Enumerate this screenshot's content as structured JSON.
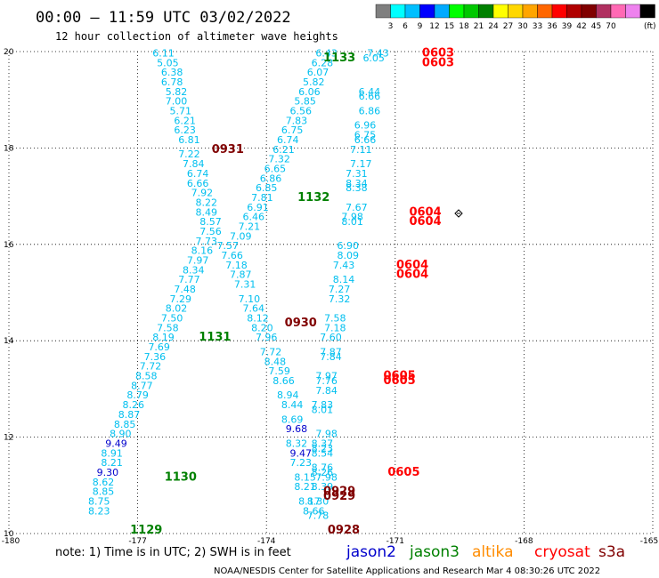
{
  "header": {
    "title": "00:00 – 11:59 UTC 03/02/2022",
    "subtitle": "12 hour collection of altimeter wave heights"
  },
  "colorbar": {
    "swatches": [
      "#7f7f7f",
      "#00ffff",
      "#00bfff",
      "#0000ff",
      "#00aaff",
      "#00ff00",
      "#00c800",
      "#008000",
      "#ffff00",
      "#ffd700",
      "#ffa500",
      "#ff6600",
      "#ff0000",
      "#b00000",
      "#800000",
      "#b03060",
      "#ff69b4",
      "#ee82ee",
      "#000000"
    ],
    "labels": [
      "3",
      "6",
      "9",
      "12",
      "15",
      "18",
      "21",
      "24",
      "27",
      "30",
      "33",
      "36",
      "39",
      "42",
      "45",
      "70"
    ],
    "unit": "(ft)"
  },
  "footer": {
    "note": "note: 1) Time is in UTC; 2) SWH is in feet",
    "credit": "NOAA/NESDIS Center for Satellite Applications and Research   Mar  4 08:30:26 UTC 2022",
    "legend": [
      {
        "name": "jason2",
        "color": "#0000cc"
      },
      {
        "name": "jason3",
        "color": "#008000"
      },
      {
        "name": "altika",
        "color": "#ff8c00"
      },
      {
        "name": "cryosat",
        "color": "#ff0000"
      },
      {
        "name": "s3a",
        "color": "#800000"
      }
    ]
  },
  "chart_data": {
    "type": "scatter",
    "title": "12 hour collection of altimeter wave heights",
    "xlabel": "",
    "ylabel": "",
    "xlim": [
      -180,
      -165
    ],
    "ylim": [
      10,
      20
    ],
    "x_ticks": [
      "-180",
      "-177",
      "-174",
      "-171",
      "-168",
      "-165"
    ],
    "y_ticks": [
      "10",
      "12",
      "14",
      "16",
      "18",
      "20"
    ],
    "grid": true,
    "swh_colors": {
      "low": "#00bfef",
      "mid": "#0000cc"
    },
    "swh_points": [
      {
        "lon": -176.4,
        "lat": 19.9,
        "swh": "6.11"
      },
      {
        "lon": -176.3,
        "lat": 19.7,
        "swh": "5.05"
      },
      {
        "lon": -176.2,
        "lat": 19.5,
        "swh": "6.38"
      },
      {
        "lon": -176.2,
        "lat": 19.3,
        "swh": "6.78"
      },
      {
        "lon": -176.1,
        "lat": 19.1,
        "swh": "5.82"
      },
      {
        "lon": -176.1,
        "lat": 18.9,
        "swh": "7.00"
      },
      {
        "lon": -176.0,
        "lat": 18.7,
        "swh": "5.71"
      },
      {
        "lon": -175.9,
        "lat": 18.5,
        "swh": "6.21"
      },
      {
        "lon": -175.9,
        "lat": 18.3,
        "swh": "6.23"
      },
      {
        "lon": -175.8,
        "lat": 18.1,
        "swh": "6.81"
      },
      {
        "lon": -175.8,
        "lat": 17.8,
        "swh": "7.22"
      },
      {
        "lon": -175.7,
        "lat": 17.6,
        "swh": "7.84"
      },
      {
        "lon": -175.6,
        "lat": 17.4,
        "swh": "6.74"
      },
      {
        "lon": -175.6,
        "lat": 17.2,
        "swh": "6.66"
      },
      {
        "lon": -175.5,
        "lat": 17.0,
        "swh": "7.92"
      },
      {
        "lon": -175.4,
        "lat": 16.8,
        "swh": "8.22"
      },
      {
        "lon": -175.4,
        "lat": 16.6,
        "swh": "8.49"
      },
      {
        "lon": -175.3,
        "lat": 16.4,
        "swh": "8.57"
      },
      {
        "lon": -175.3,
        "lat": 16.2,
        "swh": "7.56"
      },
      {
        "lon": -175.4,
        "lat": 16.0,
        "swh": "7.73"
      },
      {
        "lon": -175.5,
        "lat": 15.8,
        "swh": "8.16"
      },
      {
        "lon": -175.6,
        "lat": 15.6,
        "swh": "7.97"
      },
      {
        "lon": -175.7,
        "lat": 15.4,
        "swh": "8.34"
      },
      {
        "lon": -175.8,
        "lat": 15.2,
        "swh": "7.77"
      },
      {
        "lon": -175.9,
        "lat": 15.0,
        "swh": "7.48"
      },
      {
        "lon": -176.0,
        "lat": 14.8,
        "swh": "7.29"
      },
      {
        "lon": -176.1,
        "lat": 14.6,
        "swh": "8.02"
      },
      {
        "lon": -176.2,
        "lat": 14.4,
        "swh": "7.50"
      },
      {
        "lon": -176.3,
        "lat": 14.2,
        "swh": "7.58"
      },
      {
        "lon": -176.4,
        "lat": 14.0,
        "swh": "8.19"
      },
      {
        "lon": -176.5,
        "lat": 13.8,
        "swh": "7.69"
      },
      {
        "lon": -176.6,
        "lat": 13.6,
        "swh": "7.36"
      },
      {
        "lon": -176.7,
        "lat": 13.4,
        "swh": "7.72"
      },
      {
        "lon": -176.8,
        "lat": 13.2,
        "swh": "8.58"
      },
      {
        "lon": -176.9,
        "lat": 13.0,
        "swh": "8.77"
      },
      {
        "lon": -177.0,
        "lat": 12.8,
        "swh": "8.79"
      },
      {
        "lon": -177.1,
        "lat": 12.6,
        "swh": "8.26"
      },
      {
        "lon": -177.2,
        "lat": 12.4,
        "swh": "8.87"
      },
      {
        "lon": -177.3,
        "lat": 12.2,
        "swh": "8.85"
      },
      {
        "lon": -177.4,
        "lat": 12.0,
        "swh": "8.90"
      },
      {
        "lon": -177.5,
        "lat": 11.8,
        "swh": "9.49"
      },
      {
        "lon": -177.6,
        "lat": 11.6,
        "swh": "8.91"
      },
      {
        "lon": -177.6,
        "lat": 11.4,
        "swh": "8.21"
      },
      {
        "lon": -177.7,
        "lat": 11.2,
        "swh": "9.30"
      },
      {
        "lon": -177.8,
        "lat": 11.0,
        "swh": "8.62"
      },
      {
        "lon": -177.8,
        "lat": 10.8,
        "swh": "8.85"
      },
      {
        "lon": -177.9,
        "lat": 10.6,
        "swh": "8.75"
      },
      {
        "lon": -177.9,
        "lat": 10.4,
        "swh": "8.23"
      },
      {
        "lon": -172.6,
        "lat": 19.9,
        "swh": "6.43"
      },
      {
        "lon": -172.7,
        "lat": 19.7,
        "swh": "6.28"
      },
      {
        "lon": -172.8,
        "lat": 19.5,
        "swh": "6.07"
      },
      {
        "lon": -172.9,
        "lat": 19.3,
        "swh": "5.82"
      },
      {
        "lon": -173.0,
        "lat": 19.1,
        "swh": "6.06"
      },
      {
        "lon": -173.1,
        "lat": 18.9,
        "swh": "5.85"
      },
      {
        "lon": -173.2,
        "lat": 18.7,
        "swh": "6.56"
      },
      {
        "lon": -173.3,
        "lat": 18.5,
        "swh": "7.83"
      },
      {
        "lon": -173.4,
        "lat": 18.3,
        "swh": "6.75"
      },
      {
        "lon": -173.5,
        "lat": 18.1,
        "swh": "6.74"
      },
      {
        "lon": -173.6,
        "lat": 17.9,
        "swh": "6.21"
      },
      {
        "lon": -173.7,
        "lat": 17.7,
        "swh": "7.32"
      },
      {
        "lon": -173.8,
        "lat": 17.5,
        "swh": "6.65"
      },
      {
        "lon": -173.9,
        "lat": 17.3,
        "swh": "6.86"
      },
      {
        "lon": -174.0,
        "lat": 17.1,
        "swh": "6.85"
      },
      {
        "lon": -174.1,
        "lat": 16.9,
        "swh": "7.81"
      },
      {
        "lon": -174.2,
        "lat": 16.7,
        "swh": "6.91"
      },
      {
        "lon": -174.3,
        "lat": 16.5,
        "swh": "6.46"
      },
      {
        "lon": -174.4,
        "lat": 16.3,
        "swh": "7.21"
      },
      {
        "lon": -174.6,
        "lat": 16.1,
        "swh": "7.09"
      },
      {
        "lon": -174.9,
        "lat": 15.9,
        "swh": "7.57"
      },
      {
        "lon": -174.8,
        "lat": 15.7,
        "swh": "7.66"
      },
      {
        "lon": -174.7,
        "lat": 15.5,
        "swh": "7.18"
      },
      {
        "lon": -174.6,
        "lat": 15.3,
        "swh": "7.87"
      },
      {
        "lon": -174.5,
        "lat": 15.1,
        "swh": "7.31"
      },
      {
        "lon": -174.4,
        "lat": 14.8,
        "swh": "7.10"
      },
      {
        "lon": -174.3,
        "lat": 14.6,
        "swh": "7.64"
      },
      {
        "lon": -174.2,
        "lat": 14.4,
        "swh": "8.12"
      },
      {
        "lon": -174.1,
        "lat": 14.2,
        "swh": "8.20"
      },
      {
        "lon": -174.0,
        "lat": 14.0,
        "swh": "7.96"
      },
      {
        "lon": -173.9,
        "lat": 13.7,
        "swh": "7.72"
      },
      {
        "lon": -173.8,
        "lat": 13.5,
        "swh": "8.48"
      },
      {
        "lon": -173.7,
        "lat": 13.3,
        "swh": "7.59"
      },
      {
        "lon": -173.6,
        "lat": 13.1,
        "swh": "8.66"
      },
      {
        "lon": -173.5,
        "lat": 12.8,
        "swh": "8.94"
      },
      {
        "lon": -173.4,
        "lat": 12.6,
        "swh": "8.44"
      },
      {
        "lon": -173.4,
        "lat": 12.3,
        "swh": "8.69"
      },
      {
        "lon": -173.3,
        "lat": 12.1,
        "swh": "9.68"
      },
      {
        "lon": -173.3,
        "lat": 11.8,
        "swh": "8.32"
      },
      {
        "lon": -173.2,
        "lat": 11.6,
        "swh": "9.47"
      },
      {
        "lon": -173.2,
        "lat": 11.4,
        "swh": "7.23"
      },
      {
        "lon": -173.1,
        "lat": 11.1,
        "swh": "8.15"
      },
      {
        "lon": -173.1,
        "lat": 10.9,
        "swh": "8.21"
      },
      {
        "lon": -173.0,
        "lat": 10.6,
        "swh": "8.17"
      },
      {
        "lon": -172.9,
        "lat": 10.4,
        "swh": "8.66"
      },
      {
        "lon": -171.4,
        "lat": 19.9,
        "swh": "7.43"
      },
      {
        "lon": -171.5,
        "lat": 19.8,
        "swh": "6.05"
      },
      {
        "lon": -171.6,
        "lat": 19.1,
        "swh": "6.44"
      },
      {
        "lon": -171.6,
        "lat": 19.0,
        "swh": "6.66"
      },
      {
        "lon": -171.6,
        "lat": 18.7,
        "swh": "6.86"
      },
      {
        "lon": -171.7,
        "lat": 18.4,
        "swh": "6.96"
      },
      {
        "lon": -171.7,
        "lat": 18.2,
        "swh": "6.75"
      },
      {
        "lon": -171.7,
        "lat": 18.1,
        "swh": "6.66"
      },
      {
        "lon": -171.8,
        "lat": 17.9,
        "swh": "7.11"
      },
      {
        "lon": -171.8,
        "lat": 17.6,
        "swh": "7.17"
      },
      {
        "lon": -171.9,
        "lat": 17.4,
        "swh": "7.31"
      },
      {
        "lon": -171.9,
        "lat": 17.2,
        "swh": "8.34"
      },
      {
        "lon": -171.9,
        "lat": 17.1,
        "swh": "8.38"
      },
      {
        "lon": -171.9,
        "lat": 16.7,
        "swh": "7.67"
      },
      {
        "lon": -172.0,
        "lat": 16.5,
        "swh": "7.98"
      },
      {
        "lon": -172.0,
        "lat": 16.4,
        "swh": "8.01"
      },
      {
        "lon": -172.1,
        "lat": 15.9,
        "swh": "6.90"
      },
      {
        "lon": -172.1,
        "lat": 15.7,
        "swh": "8.09"
      },
      {
        "lon": -172.2,
        "lat": 15.5,
        "swh": "7.43"
      },
      {
        "lon": -172.2,
        "lat": 15.2,
        "swh": "8.14"
      },
      {
        "lon": -172.3,
        "lat": 15.0,
        "swh": "7.27"
      },
      {
        "lon": -172.3,
        "lat": 14.8,
        "swh": "7.32"
      },
      {
        "lon": -172.4,
        "lat": 14.4,
        "swh": "7.58"
      },
      {
        "lon": -172.4,
        "lat": 14.2,
        "swh": "7.18"
      },
      {
        "lon": -172.5,
        "lat": 14.0,
        "swh": "7.60"
      },
      {
        "lon": -172.5,
        "lat": 13.7,
        "swh": "7.87"
      },
      {
        "lon": -172.5,
        "lat": 13.6,
        "swh": "7.84"
      },
      {
        "lon": -172.6,
        "lat": 13.2,
        "swh": "7.97"
      },
      {
        "lon": -172.6,
        "lat": 13.1,
        "swh": "7.76"
      },
      {
        "lon": -172.6,
        "lat": 12.9,
        "swh": "7.84"
      },
      {
        "lon": -172.7,
        "lat": 12.6,
        "swh": "7.83"
      },
      {
        "lon": -172.7,
        "lat": 12.5,
        "swh": "8.01"
      },
      {
        "lon": -172.6,
        "lat": 12.0,
        "swh": "7.98"
      },
      {
        "lon": -172.7,
        "lat": 11.8,
        "swh": "8.37"
      },
      {
        "lon": -172.7,
        "lat": 11.7,
        "swh": "8.23"
      },
      {
        "lon": -172.7,
        "lat": 11.6,
        "swh": "8.54"
      },
      {
        "lon": -172.7,
        "lat": 11.3,
        "swh": "8.76"
      },
      {
        "lon": -172.7,
        "lat": 11.2,
        "swh": "8.26"
      },
      {
        "lon": -172.6,
        "lat": 11.1,
        "swh": "7.98"
      },
      {
        "lon": -172.7,
        "lat": 10.9,
        "swh": "8.39"
      },
      {
        "lon": -172.8,
        "lat": 10.6,
        "swh": "8.30"
      },
      {
        "lon": -172.8,
        "lat": 10.3,
        "swh": "7.78"
      }
    ],
    "time_labels": [
      {
        "lon": -172.3,
        "lat": 19.8,
        "text": "1133",
        "satellite": "jason3"
      },
      {
        "lon": -170.0,
        "lat": 19.9,
        "text": "0603",
        "satellite": "cryosat"
      },
      {
        "lon": -170.0,
        "lat": 19.7,
        "text": "0603",
        "satellite": "cryosat"
      },
      {
        "lon": -174.9,
        "lat": 17.9,
        "text": "0931",
        "satellite": "s3a"
      },
      {
        "lon": -172.9,
        "lat": 16.9,
        "text": "1132",
        "satellite": "jason3"
      },
      {
        "lon": -170.3,
        "lat": 16.6,
        "text": "0604",
        "satellite": "cryosat"
      },
      {
        "lon": -170.3,
        "lat": 16.4,
        "text": "0604",
        "satellite": "cryosat"
      },
      {
        "lon": -170.6,
        "lat": 15.5,
        "text": "0604",
        "satellite": "cryosat"
      },
      {
        "lon": -170.6,
        "lat": 15.3,
        "text": "0604",
        "satellite": "cryosat"
      },
      {
        "lon": -173.2,
        "lat": 14.3,
        "text": "0930",
        "satellite": "s3a"
      },
      {
        "lon": -175.2,
        "lat": 14.0,
        "text": "1131",
        "satellite": "jason3"
      },
      {
        "lon": -170.9,
        "lat": 13.2,
        "text": "0605",
        "satellite": "cryosat"
      },
      {
        "lon": -170.9,
        "lat": 13.1,
        "text": "0605",
        "satellite": "cryosat"
      },
      {
        "lon": -170.8,
        "lat": 11.2,
        "text": "0605",
        "satellite": "cryosat"
      },
      {
        "lon": -176.0,
        "lat": 11.1,
        "text": "1130",
        "satellite": "jason3"
      },
      {
        "lon": -172.3,
        "lat": 10.8,
        "text": "0929",
        "satellite": "s3a"
      },
      {
        "lon": -172.3,
        "lat": 10.7,
        "text": "0929",
        "satellite": "s3a"
      },
      {
        "lon": -176.8,
        "lat": 10.0,
        "text": "1129",
        "satellite": "jason3"
      },
      {
        "lon": -172.2,
        "lat": 10.0,
        "text": "0928",
        "satellite": "s3a"
      }
    ]
  }
}
